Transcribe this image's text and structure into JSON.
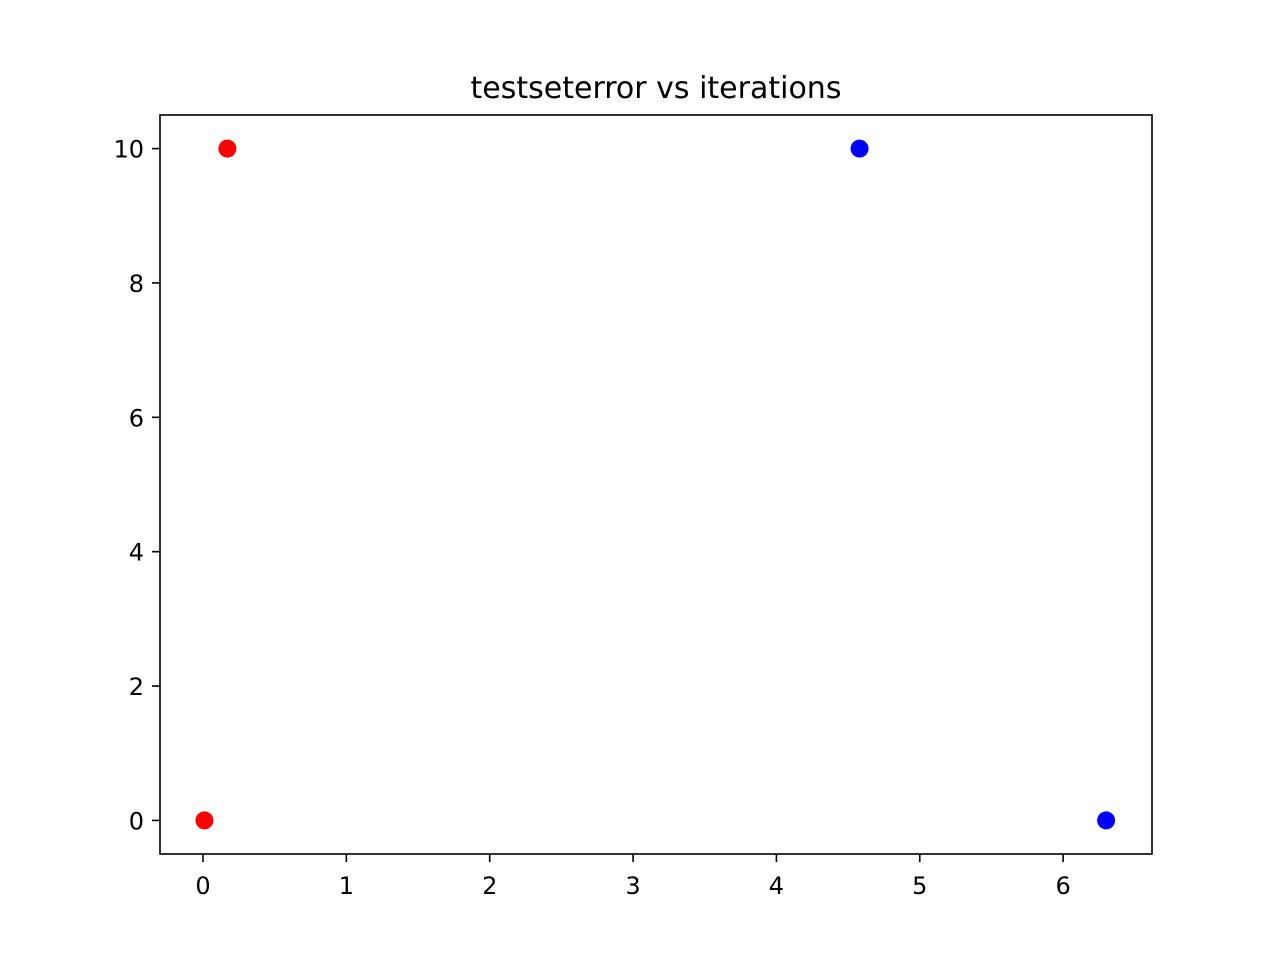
{
  "chart_data": {
    "type": "scatter",
    "title": "testseterror vs iterations",
    "xlabel": "",
    "ylabel": "",
    "xlim": [
      -0.3,
      6.62
    ],
    "ylim": [
      -0.5,
      10.5
    ],
    "xticks": [
      0,
      1,
      2,
      3,
      4,
      5,
      6
    ],
    "xtick_labels": [
      "0",
      "1",
      "2",
      "3",
      "4",
      "5",
      "6"
    ],
    "yticks": [
      0,
      2,
      4,
      6,
      8,
      10
    ],
    "ytick_labels": [
      "0",
      "2",
      "4",
      "6",
      "8",
      "10"
    ],
    "grid": false,
    "legend": "none",
    "series": [
      {
        "color": "#ff0000",
        "points": [
          {
            "x": 0.01,
            "y": 0
          },
          {
            "x": 0.17,
            "y": 10
          }
        ]
      },
      {
        "color": "#0000ff",
        "points": [
          {
            "x": 4.58,
            "y": 10
          },
          {
            "x": 6.3,
            "y": 0
          }
        ]
      }
    ]
  }
}
